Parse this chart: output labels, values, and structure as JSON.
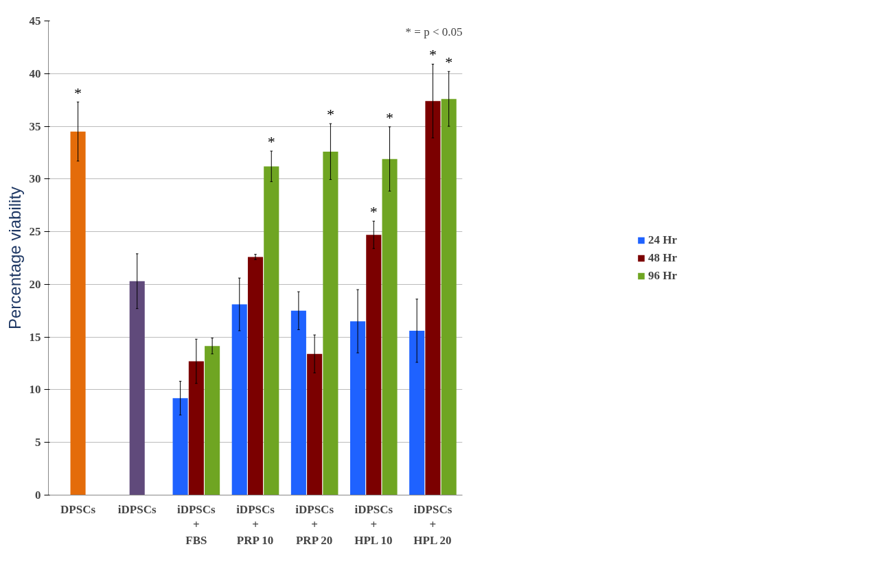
{
  "chart_data": {
    "type": "bar",
    "categories": [
      "DPSCs",
      "iDPSCs",
      "iDPSCs\n+\nFBS",
      "iDPSCs\n+\nPRP 10",
      "iDPSCs\n+\nPRP 20",
      "iDPSCs\n+\nHPL 10",
      "iDPSCs\n+\nHPL 20"
    ],
    "ylabel": "Percentage viability",
    "ylim": [
      0,
      45
    ],
    "yticks": [
      0,
      5,
      10,
      15,
      20,
      25,
      30,
      35,
      40,
      45
    ],
    "grid": "y",
    "legend": "right",
    "annotations": [
      "* = p < 0.05"
    ],
    "series": [
      {
        "colors": [
          "#e46c0a",
          "#604a7b",
          null,
          null,
          null,
          null,
          null
        ],
        "values": [
          34.5,
          20.3,
          null,
          null,
          null,
          null,
          null
        ],
        "errors": [
          2.8,
          2.6,
          null,
          null,
          null,
          null,
          null
        ],
        "value_labels": [
          "*",
          null,
          null,
          null,
          null,
          null,
          null
        ]
      },
      {
        "name": "24 Hr",
        "color": "#1f62ff",
        "values": [
          null,
          null,
          9.2,
          18.1,
          17.5,
          16.5,
          15.6
        ],
        "errors": [
          null,
          null,
          1.6,
          2.5,
          1.8,
          3.0,
          3.0
        ],
        "value_labels": [
          null,
          null,
          null,
          null,
          null,
          null,
          null
        ]
      },
      {
        "name": "48 Hr",
        "color": "#7b0000",
        "values": [
          null,
          null,
          12.7,
          22.6,
          13.4,
          24.7,
          37.4
        ],
        "errors": [
          null,
          null,
          2.1,
          0.25,
          1.8,
          1.3,
          3.5
        ],
        "value_labels": [
          null,
          null,
          null,
          null,
          null,
          "*",
          "*"
        ]
      },
      {
        "name": "96 Hr",
        "color": "#6fa522",
        "values": [
          null,
          null,
          14.15,
          31.2,
          32.6,
          31.9,
          37.6
        ],
        "errors": [
          null,
          null,
          0.75,
          1.45,
          2.65,
          3.05,
          2.6
        ],
        "value_labels": [
          null,
          null,
          null,
          "*",
          "*",
          "*",
          "*"
        ]
      }
    ]
  }
}
